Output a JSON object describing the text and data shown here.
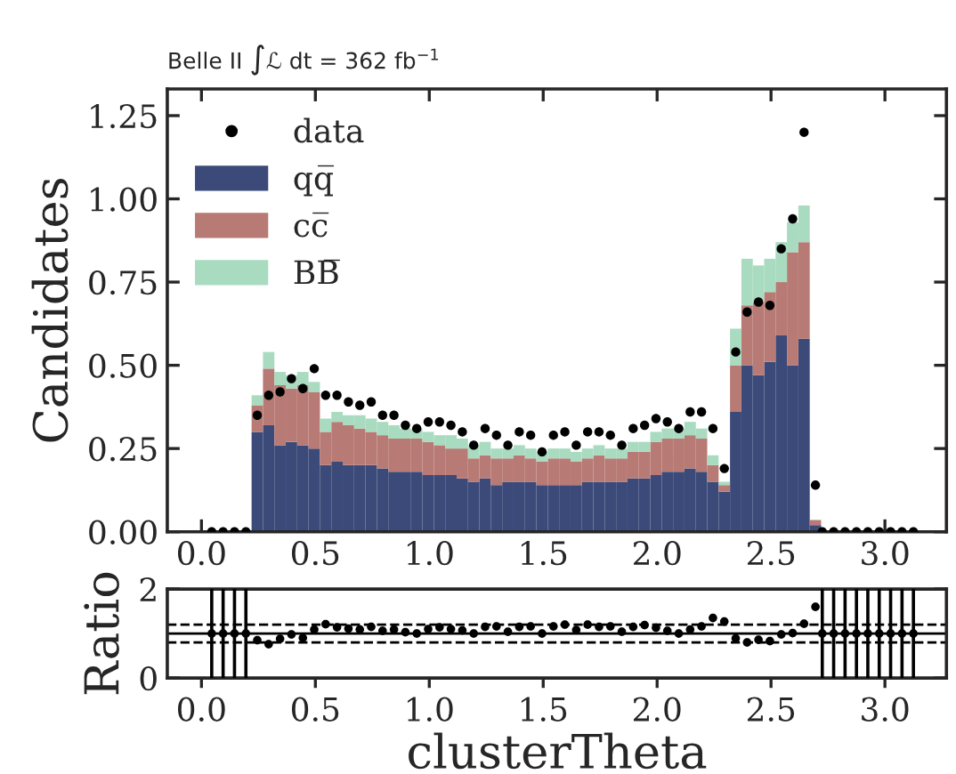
{
  "chart_data": [
    {
      "type": "bar",
      "title": "Belle II ∫ℒ dt = 362 fb$^{−1}$",
      "ylabel": "Candidates",
      "stacked": true,
      "legend": "top left",
      "grid": false,
      "x": [
        0.245,
        0.295,
        0.345,
        0.395,
        0.445,
        0.495,
        0.545,
        0.595,
        0.645,
        0.695,
        0.745,
        0.795,
        0.845,
        0.895,
        0.945,
        0.995,
        1.045,
        1.095,
        1.145,
        1.195,
        1.245,
        1.295,
        1.345,
        1.395,
        1.445,
        1.495,
        1.545,
        1.595,
        1.645,
        1.695,
        1.745,
        1.795,
        1.845,
        1.895,
        1.945,
        1.995,
        2.045,
        2.095,
        2.145,
        2.195,
        2.245,
        2.295,
        2.345,
        2.395,
        2.445,
        2.495,
        2.545,
        2.595,
        2.645,
        2.695
      ],
      "xlim": [
        -0.15,
        3.27
      ],
      "xticks": [
        {
          "value": 0,
          "label": "0.0"
        },
        {
          "value": 0.5,
          "label": "0.5"
        },
        {
          "value": 1,
          "label": "1.0"
        },
        {
          "value": 1.5,
          "label": "1.5"
        },
        {
          "value": 2,
          "label": "2.0"
        },
        {
          "value": 2.5,
          "label": "2.5"
        },
        {
          "value": 3,
          "label": "3.0"
        }
      ],
      "ylim": [
        0,
        1.33
      ],
      "yticks": [
        {
          "value": 0,
          "label": "0.00"
        },
        {
          "value": 0.25,
          "label": "0.25"
        },
        {
          "value": 0.5,
          "label": "0.50"
        },
        {
          "value": 0.75,
          "label": "0.75"
        },
        {
          "value": 1,
          "label": "1.00"
        },
        {
          "value": 1.25,
          "label": "1.25"
        }
      ],
      "series": [
        {
          "name": "qq̅",
          "color": "#3b4a78",
          "values": [
            0.3,
            0.32,
            0.26,
            0.27,
            0.26,
            0.25,
            0.2,
            0.21,
            0.2,
            0.2,
            0.2,
            0.19,
            0.18,
            0.18,
            0.18,
            0.17,
            0.17,
            0.17,
            0.16,
            0.15,
            0.16,
            0.14,
            0.15,
            0.15,
            0.15,
            0.14,
            0.14,
            0.14,
            0.14,
            0.15,
            0.15,
            0.15,
            0.15,
            0.16,
            0.16,
            0.17,
            0.18,
            0.18,
            0.19,
            0.18,
            0.15,
            0.12,
            0.36,
            0.5,
            0.47,
            0.51,
            0.59,
            0.5,
            0.58,
            0.02
          ]
        },
        {
          "name": "cc̅",
          "color": "#b87a74",
          "values": [
            0.08,
            0.17,
            0.18,
            0.16,
            0.18,
            0.17,
            0.1,
            0.12,
            0.12,
            0.11,
            0.1,
            0.1,
            0.1,
            0.1,
            0.1,
            0.1,
            0.09,
            0.08,
            0.09,
            0.07,
            0.07,
            0.08,
            0.07,
            0.08,
            0.07,
            0.07,
            0.08,
            0.08,
            0.07,
            0.07,
            0.08,
            0.07,
            0.07,
            0.08,
            0.08,
            0.1,
            0.1,
            0.1,
            0.1,
            0.1,
            0.05,
            0.02,
            0.14,
            0.18,
            0.22,
            0.21,
            0.16,
            0.34,
            0.29,
            0.015
          ]
        },
        {
          "name": "BB̅",
          "color": "#a8dbbf",
          "values": [
            0.03,
            0.05,
            0.04,
            0.04,
            0.04,
            0.03,
            0.04,
            0.03,
            0.03,
            0.04,
            0.04,
            0.04,
            0.04,
            0.03,
            0.03,
            0.03,
            0.03,
            0.04,
            0.03,
            0.04,
            0.04,
            0.03,
            0.03,
            0.03,
            0.03,
            0.03,
            0.03,
            0.03,
            0.03,
            0.03,
            0.03,
            0.03,
            0.03,
            0.03,
            0.03,
            0.03,
            0.03,
            0.03,
            0.04,
            0.03,
            0.03,
            0.01,
            0.11,
            0.14,
            0.11,
            0.1,
            0.12,
            0.09,
            0.11,
            null
          ]
        },
        {
          "name": "data",
          "type": "scatter",
          "color": "#000000",
          "marker": "circle",
          "x": [
            0.045,
            0.095,
            0.145,
            0.195,
            0.245,
            0.295,
            0.345,
            0.395,
            0.445,
            0.495,
            0.545,
            0.595,
            0.645,
            0.695,
            0.745,
            0.795,
            0.845,
            0.895,
            0.945,
            0.995,
            1.045,
            1.095,
            1.145,
            1.195,
            1.245,
            1.295,
            1.345,
            1.395,
            1.445,
            1.495,
            1.545,
            1.595,
            1.645,
            1.695,
            1.745,
            1.795,
            1.845,
            1.895,
            1.945,
            1.995,
            2.045,
            2.095,
            2.145,
            2.195,
            2.245,
            2.295,
            2.345,
            2.395,
            2.445,
            2.495,
            2.545,
            2.595,
            2.645,
            2.695,
            2.725,
            2.775,
            2.825,
            2.875,
            2.925,
            2.975,
            3.025,
            3.075,
            3.125
          ],
          "values": [
            0,
            0,
            0,
            0,
            0.35,
            0.41,
            0.42,
            0.46,
            0.43,
            0.49,
            0.41,
            0.41,
            0.39,
            0.38,
            0.39,
            0.35,
            0.35,
            0.32,
            0.31,
            0.33,
            0.33,
            0.32,
            0.3,
            0.26,
            0.31,
            0.29,
            0.26,
            0.3,
            0.29,
            0.24,
            0.29,
            0.3,
            0.26,
            0.3,
            0.3,
            0.29,
            0.26,
            0.31,
            0.32,
            0.34,
            0.33,
            0.31,
            0.36,
            0.36,
            0.31,
            0.19,
            0.54,
            0.66,
            0.69,
            0.68,
            0.85,
            0.94,
            1.2,
            0.14,
            0,
            0,
            0,
            0,
            0,
            0,
            0,
            0,
            0
          ]
        }
      ]
    },
    {
      "type": "scatter",
      "xlabel": "clusterTheta",
      "ylabel": "Ratio",
      "marker": "circle",
      "grid": false,
      "xlim": [
        -0.15,
        3.27
      ],
      "xticks": [
        {
          "value": 0,
          "label": "0.0"
        },
        {
          "value": 0.5,
          "label": "0.5"
        },
        {
          "value": 1,
          "label": "1.0"
        },
        {
          "value": 1.5,
          "label": "1.5"
        },
        {
          "value": 2,
          "label": "2.0"
        },
        {
          "value": 2.5,
          "label": "2.5"
        },
        {
          "value": 3,
          "label": "3.0"
        }
      ],
      "ylim": [
        0,
        2
      ],
      "yticks": [
        0,
        2
      ],
      "x": [
        0.045,
        0.095,
        0.145,
        0.195,
        0.245,
        0.295,
        0.345,
        0.395,
        0.445,
        0.495,
        0.545,
        0.595,
        0.645,
        0.695,
        0.745,
        0.795,
        0.845,
        0.895,
        0.945,
        0.995,
        1.045,
        1.095,
        1.145,
        1.195,
        1.245,
        1.295,
        1.345,
        1.395,
        1.445,
        1.495,
        1.545,
        1.595,
        1.645,
        1.695,
        1.745,
        1.795,
        1.845,
        1.895,
        1.945,
        1.995,
        2.045,
        2.095,
        2.145,
        2.195,
        2.245,
        2.295,
        2.345,
        2.395,
        2.445,
        2.495,
        2.545,
        2.595,
        2.645,
        2.695,
        2.725,
        2.775,
        2.825,
        2.875,
        2.925,
        2.975,
        3.025,
        3.075,
        3.125
      ],
      "series": [
        {
          "color": "#000000",
          "values": [
            1,
            1,
            1,
            1,
            0.85,
            0.76,
            0.88,
            0.98,
            0.9,
            1.09,
            1.21,
            1.14,
            1.11,
            1.09,
            1.15,
            1.06,
            1.09,
            1.03,
            1.0,
            1.1,
            1.14,
            1.1,
            1.07,
            1.0,
            1.15,
            1.16,
            1.04,
            1.15,
            1.16,
            1.0,
            1.16,
            1.2,
            1.08,
            1.2,
            1.15,
            1.16,
            1.04,
            1.15,
            1.19,
            1.13,
            1.06,
            1.0,
            1.09,
            1.16,
            1.35,
            1.27,
            0.89,
            0.8,
            0.86,
            0.83,
            0.98,
            1.01,
            1.22,
            1.6,
            1,
            1,
            1,
            1,
            1,
            1,
            1,
            1,
            1
          ],
          "errors": [
            1,
            1,
            1,
            1,
            null,
            null,
            null,
            null,
            null,
            null,
            null,
            null,
            null,
            null,
            null,
            null,
            null,
            null,
            null,
            null,
            null,
            null,
            null,
            null,
            null,
            null,
            null,
            null,
            null,
            null,
            null,
            null,
            null,
            null,
            null,
            null,
            null,
            null,
            null,
            null,
            null,
            null,
            null,
            null,
            null,
            null,
            null,
            null,
            null,
            null,
            null,
            null,
            null,
            null,
            1,
            1,
            1,
            1,
            1,
            1,
            1,
            1,
            1
          ]
        }
      ],
      "ref_lines": [
        {
          "axis": "y",
          "value": 1,
          "color": "#000000",
          "line_style": "solid"
        },
        {
          "axis": "y",
          "value": 0.8,
          "color": "#000000",
          "line_style": "dashed"
        },
        {
          "axis": "y",
          "value": 1.2,
          "color": "#000000",
          "line_style": "dashed"
        }
      ]
    }
  ]
}
